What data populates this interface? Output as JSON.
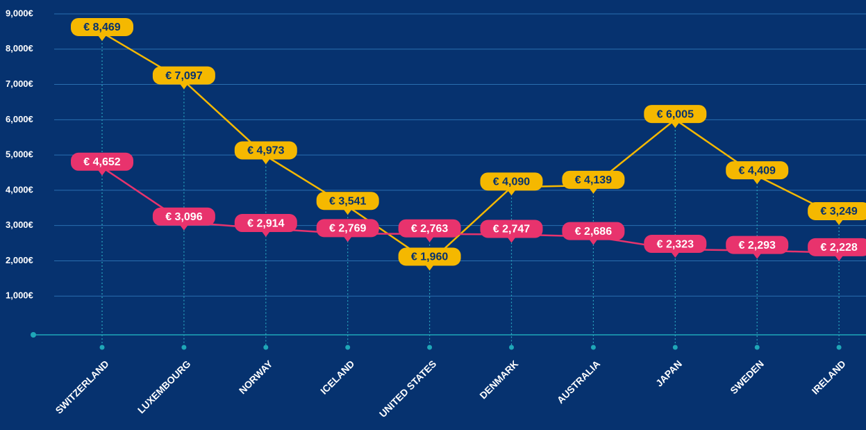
{
  "chart_data": {
    "type": "line",
    "categories": [
      "SWITZERLAND",
      "LUXEMBOURG",
      "NORWAY",
      "ICELAND",
      "UNITED STATES",
      "DENMARK",
      "AUSTRALIA",
      "JAPAN",
      "SWEDEN",
      "IRELAND"
    ],
    "series": [
      {
        "color": "#f5b800",
        "label_text_color": "#06326f",
        "values": [
          8469,
          7097,
          4973,
          3541,
          1960,
          4090,
          4139,
          6005,
          4409,
          3249
        ],
        "value_labels": [
          "€ 8,469",
          "€ 7,097",
          "€ 4,973",
          "€ 3,541",
          "€ 1,960",
          "€ 4,090",
          "€ 4,139",
          "€ 6,005",
          "€ 4,409",
          "€ 3,249"
        ]
      },
      {
        "color": "#e8336d",
        "label_text_color": "#ffffff",
        "values": [
          4652,
          3096,
          2914,
          2769,
          2763,
          2747,
          2686,
          2323,
          2293,
          2228
        ],
        "value_labels": [
          "€ 4,652",
          "€ 3,096",
          "€ 2,914",
          "€ 2,769",
          "€ 2,763",
          "€ 2,747",
          "€ 2,686",
          "€ 2,323",
          "€ 2,293",
          "€ 2,228"
        ]
      }
    ],
    "ylim": [
      0,
      9000
    ],
    "yticks": [
      {
        "value": 1000,
        "label": "1,000€"
      },
      {
        "value": 2000,
        "label": "2,000€"
      },
      {
        "value": 3000,
        "label": "3,000€"
      },
      {
        "value": 4000,
        "label": "4,000€"
      },
      {
        "value": 5000,
        "label": "5,000€"
      },
      {
        "value": 6000,
        "label": "6,000€"
      },
      {
        "value": 7000,
        "label": "7,000€"
      },
      {
        "value": 8000,
        "label": "8,000€"
      },
      {
        "value": 9000,
        "label": "9,000€"
      }
    ],
    "grid": true
  }
}
